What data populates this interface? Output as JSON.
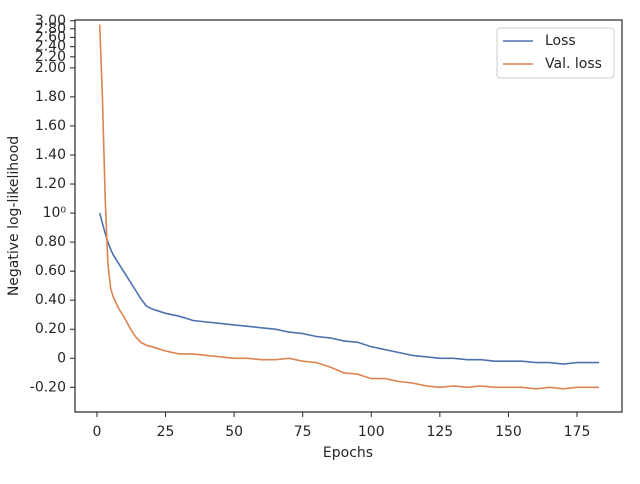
{
  "chart_data": {
    "type": "line",
    "xlabel": "Epochs",
    "ylabel": "Negative log-likelihood",
    "x": [
      1,
      2,
      3,
      4,
      5,
      6,
      8,
      10,
      12,
      14,
      16,
      18,
      20,
      25,
      30,
      35,
      40,
      45,
      50,
      55,
      60,
      65,
      70,
      75,
      80,
      85,
      90,
      95,
      100,
      105,
      110,
      115,
      120,
      125,
      130,
      135,
      140,
      145,
      150,
      155,
      160,
      165,
      170,
      175,
      180,
      183
    ],
    "series": [
      {
        "name": "Loss",
        "color": "#4c72b0",
        "values": [
          1,
          0.93,
          0.86,
          0.8,
          0.75,
          0.71,
          0.65,
          0.59,
          0.53,
          0.47,
          0.41,
          0.36,
          0.34,
          0.31,
          0.29,
          0.26,
          0.25,
          0.24,
          0.23,
          0.22,
          0.21,
          0.2,
          0.18,
          0.17,
          0.15,
          0.14,
          0.12,
          0.11,
          0.08,
          0.06,
          0.04,
          0.02,
          0.01,
          0,
          0,
          -0.01,
          -0.01,
          -0.02,
          -0.02,
          -0.02,
          -0.03,
          -0.03,
          -0.04,
          -0.03,
          -0.03,
          -0.03
        ]
      },
      {
        "name": "Val. loss",
        "color": "#dd8452",
        "values": [
          2.9,
          1.8,
          1.1,
          0.65,
          0.48,
          0.42,
          0.34,
          0.28,
          0.21,
          0.15,
          0.11,
          0.09,
          0.08,
          0.05,
          0.03,
          0.03,
          0.02,
          0.01,
          0,
          0,
          -0.01,
          -0.01,
          0,
          -0.02,
          -0.03,
          -0.06,
          -0.1,
          -0.11,
          -0.14,
          -0.14,
          -0.16,
          -0.17,
          -0.19,
          -0.2,
          -0.19,
          -0.2,
          -0.19,
          -0.2,
          -0.2,
          -0.2,
          -0.21,
          -0.2,
          -0.21,
          -0.2,
          -0.2,
          -0.2
        ]
      }
    ],
    "xlim": [
      -8,
      191.4
    ],
    "xticks": [
      0,
      25,
      50,
      75,
      100,
      125,
      150,
      175
    ],
    "ylim": [
      -0.37,
      3.02
    ],
    "yscale": "linear-log",
    "ylinthresh": 2,
    "yticks": [
      {
        "value": -0.2,
        "label": "-0.20"
      },
      0,
      {
        "value": 0.2,
        "label": "0.20"
      },
      {
        "value": 0.4,
        "label": "0.40"
      },
      {
        "value": 0.6,
        "label": "0.60"
      },
      {
        "value": 0.8,
        "label": "0.80"
      },
      {
        "value": 1,
        "label": "10⁰"
      },
      {
        "value": 1.2,
        "label": "1.20"
      },
      {
        "value": 1.4,
        "label": "1.40"
      },
      {
        "value": 1.6,
        "label": "1.60"
      },
      {
        "value": 1.8,
        "label": "1.80"
      },
      {
        "value": 2,
        "label": "2.00"
      },
      {
        "value": 2.2,
        "label": "2.20"
      },
      {
        "value": 2.4,
        "label": "2.40"
      },
      {
        "value": 2.6,
        "label": "2.60"
      },
      {
        "value": 2.8,
        "label": "2.80"
      },
      {
        "value": 3,
        "label": "3.00"
      }
    ],
    "legend": "upper right"
  }
}
